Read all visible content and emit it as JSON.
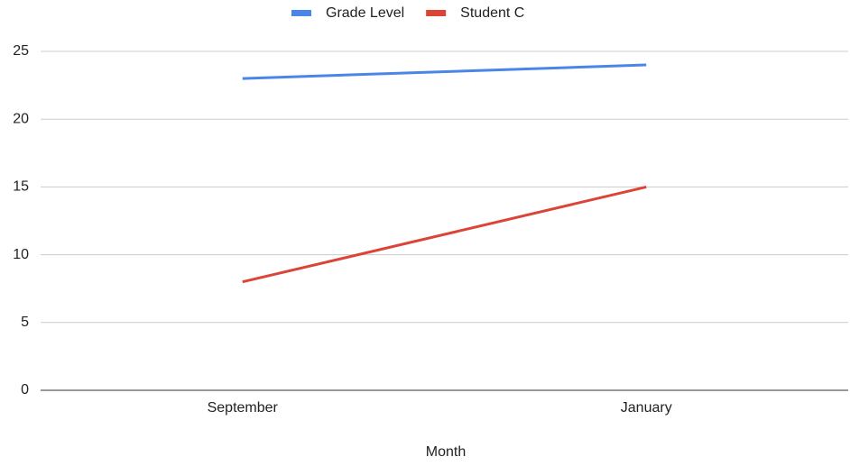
{
  "chart_data": {
    "type": "line",
    "x_label": "Month",
    "categories": [
      "September",
      "January"
    ],
    "series": [
      {
        "name": "Grade Level",
        "color": "#4a86e8",
        "values": [
          23,
          24
        ]
      },
      {
        "name": "Student C",
        "color": "#db4437",
        "values": [
          8,
          15
        ]
      }
    ],
    "ylim": [
      0,
      25
    ],
    "yticks": [
      0,
      5,
      10,
      15,
      20,
      25
    ],
    "grid": true,
    "legend": "top"
  }
}
